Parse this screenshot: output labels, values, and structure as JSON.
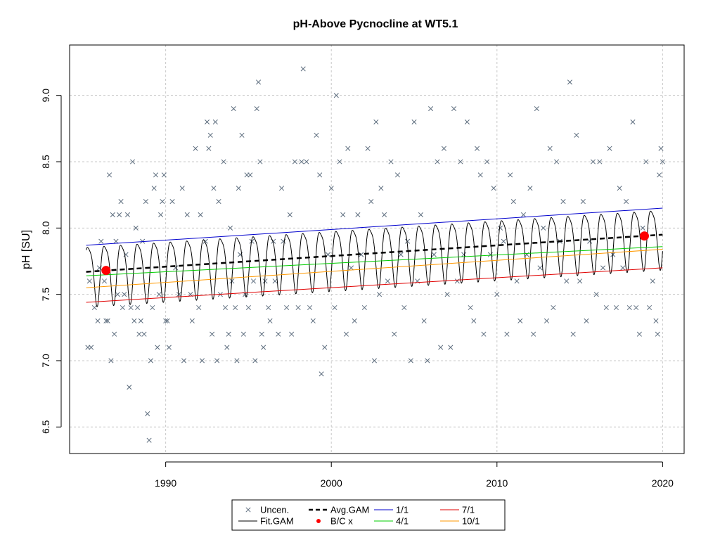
{
  "chart_data": {
    "type": "scatter",
    "title": "pH-Above Pycnocline at WT5.1",
    "xlabel": "",
    "ylabel": "pH [SU]",
    "xlim": [
      1984.2,
      2021.3
    ],
    "ylim": [
      6.3,
      9.38
    ],
    "xticks": [
      1990,
      2000,
      2010,
      2020
    ],
    "xtick_labels": [
      "1990",
      "2000",
      "2010",
      "2020"
    ],
    "yticks": [
      6.5,
      7.0,
      7.5,
      8.0,
      8.5,
      9.0
    ],
    "ytick_labels": [
      "6.5",
      "7.0",
      "7.5",
      "8.0",
      "8.5",
      "9.0"
    ],
    "grid": true,
    "legend_position": "bottom-center",
    "legend": [
      {
        "label": "Uncen.",
        "kind": "x-marker",
        "color": "#5d6d7e"
      },
      {
        "label": "Fit.GAM",
        "kind": "line",
        "color": "#000000"
      },
      {
        "label": "Avg.GAM",
        "kind": "dashed-line",
        "color": "#000000"
      },
      {
        "label": "B/C x",
        "kind": "dot",
        "color": "#ff0000"
      },
      {
        "label": "1/1",
        "kind": "line",
        "color": "#0000cd"
      },
      {
        "label": "4/1",
        "kind": "line",
        "color": "#00cc00"
      },
      {
        "label": "7/1",
        "kind": "line",
        "color": "#e00000"
      },
      {
        "label": "10/1",
        "kind": "line",
        "color": "#ff9900"
      }
    ],
    "series": [
      {
        "name": "1/1",
        "color": "#0000cd",
        "x": [
          1985.2,
          2020.0
        ],
        "y": [
          7.87,
          8.15
        ]
      },
      {
        "name": "4/1",
        "color": "#00cc00",
        "x": [
          1985.2,
          2020.0
        ],
        "y": [
          7.64,
          7.86
        ]
      },
      {
        "name": "7/1",
        "color": "#e00000",
        "x": [
          1985.2,
          2020.0
        ],
        "y": [
          7.44,
          7.7
        ]
      },
      {
        "name": "10/1",
        "color": "#ff9900",
        "x": [
          1985.2,
          2020.0
        ],
        "y": [
          7.55,
          7.84
        ]
      },
      {
        "name": "Avg.GAM",
        "color": "#000000",
        "x": [
          1985.2,
          2020.0
        ],
        "y": [
          7.67,
          7.95
        ]
      },
      {
        "name": "Fit.GAM",
        "color": "#000000",
        "x_start": 1985.2,
        "x_end": 2020.0,
        "trend_start": 7.67,
        "trend_end": 7.95,
        "seasonal_amplitude": 0.22,
        "cycle_years": 1.0
      },
      {
        "name": "B/C x",
        "color": "#ff0000",
        "x": [
          1986.4,
          2018.9
        ],
        "y": [
          7.68,
          7.94
        ]
      }
    ],
    "points": [
      [
        1985.3,
        7.1
      ],
      [
        1985.4,
        7.6
      ],
      [
        1985.5,
        7.1
      ],
      [
        1985.7,
        7.4
      ],
      [
        1985.9,
        7.3
      ],
      [
        1986.0,
        7.7
      ],
      [
        1986.1,
        7.9
      ],
      [
        1986.3,
        7.6
      ],
      [
        1986.4,
        7.3
      ],
      [
        1986.5,
        7.3
      ],
      [
        1986.6,
        8.4
      ],
      [
        1986.7,
        7.0
      ],
      [
        1986.8,
        8.1
      ],
      [
        1986.9,
        7.2
      ],
      [
        1987.0,
        7.9
      ],
      [
        1987.1,
        7.5
      ],
      [
        1987.2,
        8.1
      ],
      [
        1987.3,
        8.2
      ],
      [
        1987.4,
        7.4
      ],
      [
        1987.5,
        7.5
      ],
      [
        1987.6,
        7.8
      ],
      [
        1987.7,
        8.1
      ],
      [
        1987.8,
        6.8
      ],
      [
        1987.9,
        7.4
      ],
      [
        1988.0,
        8.5
      ],
      [
        1988.1,
        7.3
      ],
      [
        1988.2,
        8.0
      ],
      [
        1988.3,
        7.4
      ],
      [
        1988.4,
        7.2
      ],
      [
        1988.5,
        7.3
      ],
      [
        1988.6,
        7.9
      ],
      [
        1988.7,
        7.2
      ],
      [
        1988.8,
        8.2
      ],
      [
        1988.9,
        6.6
      ],
      [
        1989.0,
        6.4
      ],
      [
        1989.1,
        7.0
      ],
      [
        1989.2,
        7.4
      ],
      [
        1989.3,
        8.3
      ],
      [
        1989.4,
        8.4
      ],
      [
        1989.5,
        7.1
      ],
      [
        1989.6,
        7.5
      ],
      [
        1989.7,
        8.1
      ],
      [
        1989.8,
        8.2
      ],
      [
        1989.9,
        8.4
      ],
      [
        1990.0,
        7.3
      ],
      [
        1990.1,
        7.3
      ],
      [
        1990.2,
        7.1
      ],
      [
        1990.4,
        8.2
      ],
      [
        1990.6,
        7.7
      ],
      [
        1990.8,
        7.5
      ],
      [
        1991.0,
        8.3
      ],
      [
        1991.1,
        7.0
      ],
      [
        1991.3,
        8.1
      ],
      [
        1991.5,
        7.5
      ],
      [
        1991.6,
        7.3
      ],
      [
        1991.8,
        8.6
      ],
      [
        1992.0,
        7.4
      ],
      [
        1992.1,
        8.1
      ],
      [
        1992.2,
        7.0
      ],
      [
        1992.4,
        7.9
      ],
      [
        1992.5,
        8.8
      ],
      [
        1992.6,
        8.6
      ],
      [
        1992.7,
        8.7
      ],
      [
        1992.8,
        7.2
      ],
      [
        1992.9,
        8.3
      ],
      [
        1993.0,
        8.8
      ],
      [
        1993.1,
        7.0
      ],
      [
        1993.2,
        8.2
      ],
      [
        1993.3,
        7.5
      ],
      [
        1993.5,
        8.5
      ],
      [
        1993.6,
        7.4
      ],
      [
        1993.7,
        7.1
      ],
      [
        1993.8,
        7.2
      ],
      [
        1993.9,
        8.0
      ],
      [
        1994.0,
        7.6
      ],
      [
        1994.1,
        8.9
      ],
      [
        1994.2,
        7.4
      ],
      [
        1994.3,
        7.0
      ],
      [
        1994.4,
        8.3
      ],
      [
        1994.5,
        7.8
      ],
      [
        1994.6,
        8.7
      ],
      [
        1994.7,
        7.2
      ],
      [
        1994.8,
        7.5
      ],
      [
        1994.9,
        8.4
      ],
      [
        1995.0,
        7.4
      ],
      [
        1995.1,
        8.4
      ],
      [
        1995.2,
        7.9
      ],
      [
        1995.3,
        7.6
      ],
      [
        1995.4,
        7.0
      ],
      [
        1995.5,
        8.9
      ],
      [
        1995.6,
        9.1
      ],
      [
        1995.7,
        8.5
      ],
      [
        1995.8,
        7.2
      ],
      [
        1995.9,
        7.1
      ],
      [
        1996.0,
        7.6
      ],
      [
        1996.2,
        7.4
      ],
      [
        1996.3,
        7.3
      ],
      [
        1996.5,
        7.9
      ],
      [
        1996.6,
        7.6
      ],
      [
        1996.8,
        7.2
      ],
      [
        1997.0,
        8.3
      ],
      [
        1997.1,
        7.9
      ],
      [
        1997.3,
        7.4
      ],
      [
        1997.5,
        8.1
      ],
      [
        1997.6,
        7.2
      ],
      [
        1997.8,
        8.5
      ],
      [
        1998.0,
        7.4
      ],
      [
        1998.2,
        8.5
      ],
      [
        1998.3,
        9.2
      ],
      [
        1998.5,
        8.5
      ],
      [
        1998.7,
        7.4
      ],
      [
        1998.9,
        7.3
      ],
      [
        1999.1,
        8.7
      ],
      [
        1999.3,
        8.4
      ],
      [
        1999.4,
        6.9
      ],
      [
        1999.6,
        7.1
      ],
      [
        1999.8,
        7.8
      ],
      [
        2000.0,
        8.3
      ],
      [
        2000.2,
        7.4
      ],
      [
        2000.3,
        9.0
      ],
      [
        2000.5,
        8.5
      ],
      [
        2000.7,
        8.1
      ],
      [
        2000.9,
        7.2
      ],
      [
        2001.0,
        8.6
      ],
      [
        2001.2,
        7.7
      ],
      [
        2001.4,
        7.3
      ],
      [
        2001.6,
        8.1
      ],
      [
        2001.8,
        7.8
      ],
      [
        2002.0,
        7.4
      ],
      [
        2002.2,
        8.6
      ],
      [
        2002.4,
        8.2
      ],
      [
        2002.6,
        7.0
      ],
      [
        2002.7,
        8.8
      ],
      [
        2002.9,
        7.5
      ],
      [
        2003.0,
        8.3
      ],
      [
        2003.2,
        8.1
      ],
      [
        2003.4,
        7.6
      ],
      [
        2003.6,
        8.5
      ],
      [
        2003.8,
        7.2
      ],
      [
        2004.0,
        8.4
      ],
      [
        2004.2,
        7.8
      ],
      [
        2004.4,
        7.4
      ],
      [
        2004.6,
        7.9
      ],
      [
        2004.8,
        7.0
      ],
      [
        2005.0,
        8.8
      ],
      [
        2005.2,
        7.6
      ],
      [
        2005.4,
        8.1
      ],
      [
        2005.6,
        7.3
      ],
      [
        2005.8,
        7.0
      ],
      [
        2006.0,
        8.9
      ],
      [
        2006.2,
        7.8
      ],
      [
        2006.4,
        8.5
      ],
      [
        2006.6,
        7.1
      ],
      [
        2006.8,
        8.6
      ],
      [
        2007.0,
        7.5
      ],
      [
        2007.2,
        7.1
      ],
      [
        2007.4,
        8.9
      ],
      [
        2007.6,
        7.6
      ],
      [
        2007.8,
        8.5
      ],
      [
        2008.0,
        7.8
      ],
      [
        2008.2,
        8.8
      ],
      [
        2008.4,
        7.4
      ],
      [
        2008.6,
        7.3
      ],
      [
        2008.8,
        8.6
      ],
      [
        2009.0,
        8.4
      ],
      [
        2009.2,
        7.2
      ],
      [
        2009.4,
        8.5
      ],
      [
        2009.6,
        7.8
      ],
      [
        2009.8,
        8.3
      ],
      [
        2010.0,
        7.5
      ],
      [
        2010.2,
        8.0
      ],
      [
        2010.4,
        7.9
      ],
      [
        2010.6,
        7.2
      ],
      [
        2010.8,
        8.4
      ],
      [
        2011.0,
        8.2
      ],
      [
        2011.2,
        7.6
      ],
      [
        2011.4,
        7.3
      ],
      [
        2011.6,
        8.1
      ],
      [
        2011.8,
        7.8
      ],
      [
        2012.0,
        8.3
      ],
      [
        2012.2,
        7.2
      ],
      [
        2012.4,
        8.9
      ],
      [
        2012.6,
        7.7
      ],
      [
        2012.8,
        8.0
      ],
      [
        2013.0,
        7.3
      ],
      [
        2013.2,
        8.6
      ],
      [
        2013.4,
        7.4
      ],
      [
        2013.6,
        8.5
      ],
      [
        2013.8,
        7.9
      ],
      [
        2014.0,
        8.2
      ],
      [
        2014.2,
        7.6
      ],
      [
        2014.4,
        9.1
      ],
      [
        2014.6,
        7.2
      ],
      [
        2014.8,
        8.7
      ],
      [
        2015.0,
        7.6
      ],
      [
        2015.2,
        8.2
      ],
      [
        2015.4,
        7.3
      ],
      [
        2015.6,
        7.9
      ],
      [
        2015.8,
        8.5
      ],
      [
        2016.0,
        7.5
      ],
      [
        2016.2,
        8.5
      ],
      [
        2016.4,
        7.7
      ],
      [
        2016.6,
        7.4
      ],
      [
        2016.8,
        8.6
      ],
      [
        2017.0,
        7.8
      ],
      [
        2017.2,
        7.4
      ],
      [
        2017.4,
        8.3
      ],
      [
        2017.6,
        7.7
      ],
      [
        2017.8,
        8.2
      ],
      [
        2018.0,
        7.4
      ],
      [
        2018.2,
        8.8
      ],
      [
        2018.4,
        7.4
      ],
      [
        2018.6,
        7.2
      ],
      [
        2018.8,
        8.0
      ],
      [
        2019.0,
        8.5
      ],
      [
        2019.2,
        7.4
      ],
      [
        2019.4,
        7.6
      ],
      [
        2019.6,
        7.3
      ],
      [
        2019.7,
        7.2
      ],
      [
        2019.8,
        8.4
      ],
      [
        2019.9,
        8.6
      ],
      [
        2020.0,
        8.5
      ]
    ]
  }
}
